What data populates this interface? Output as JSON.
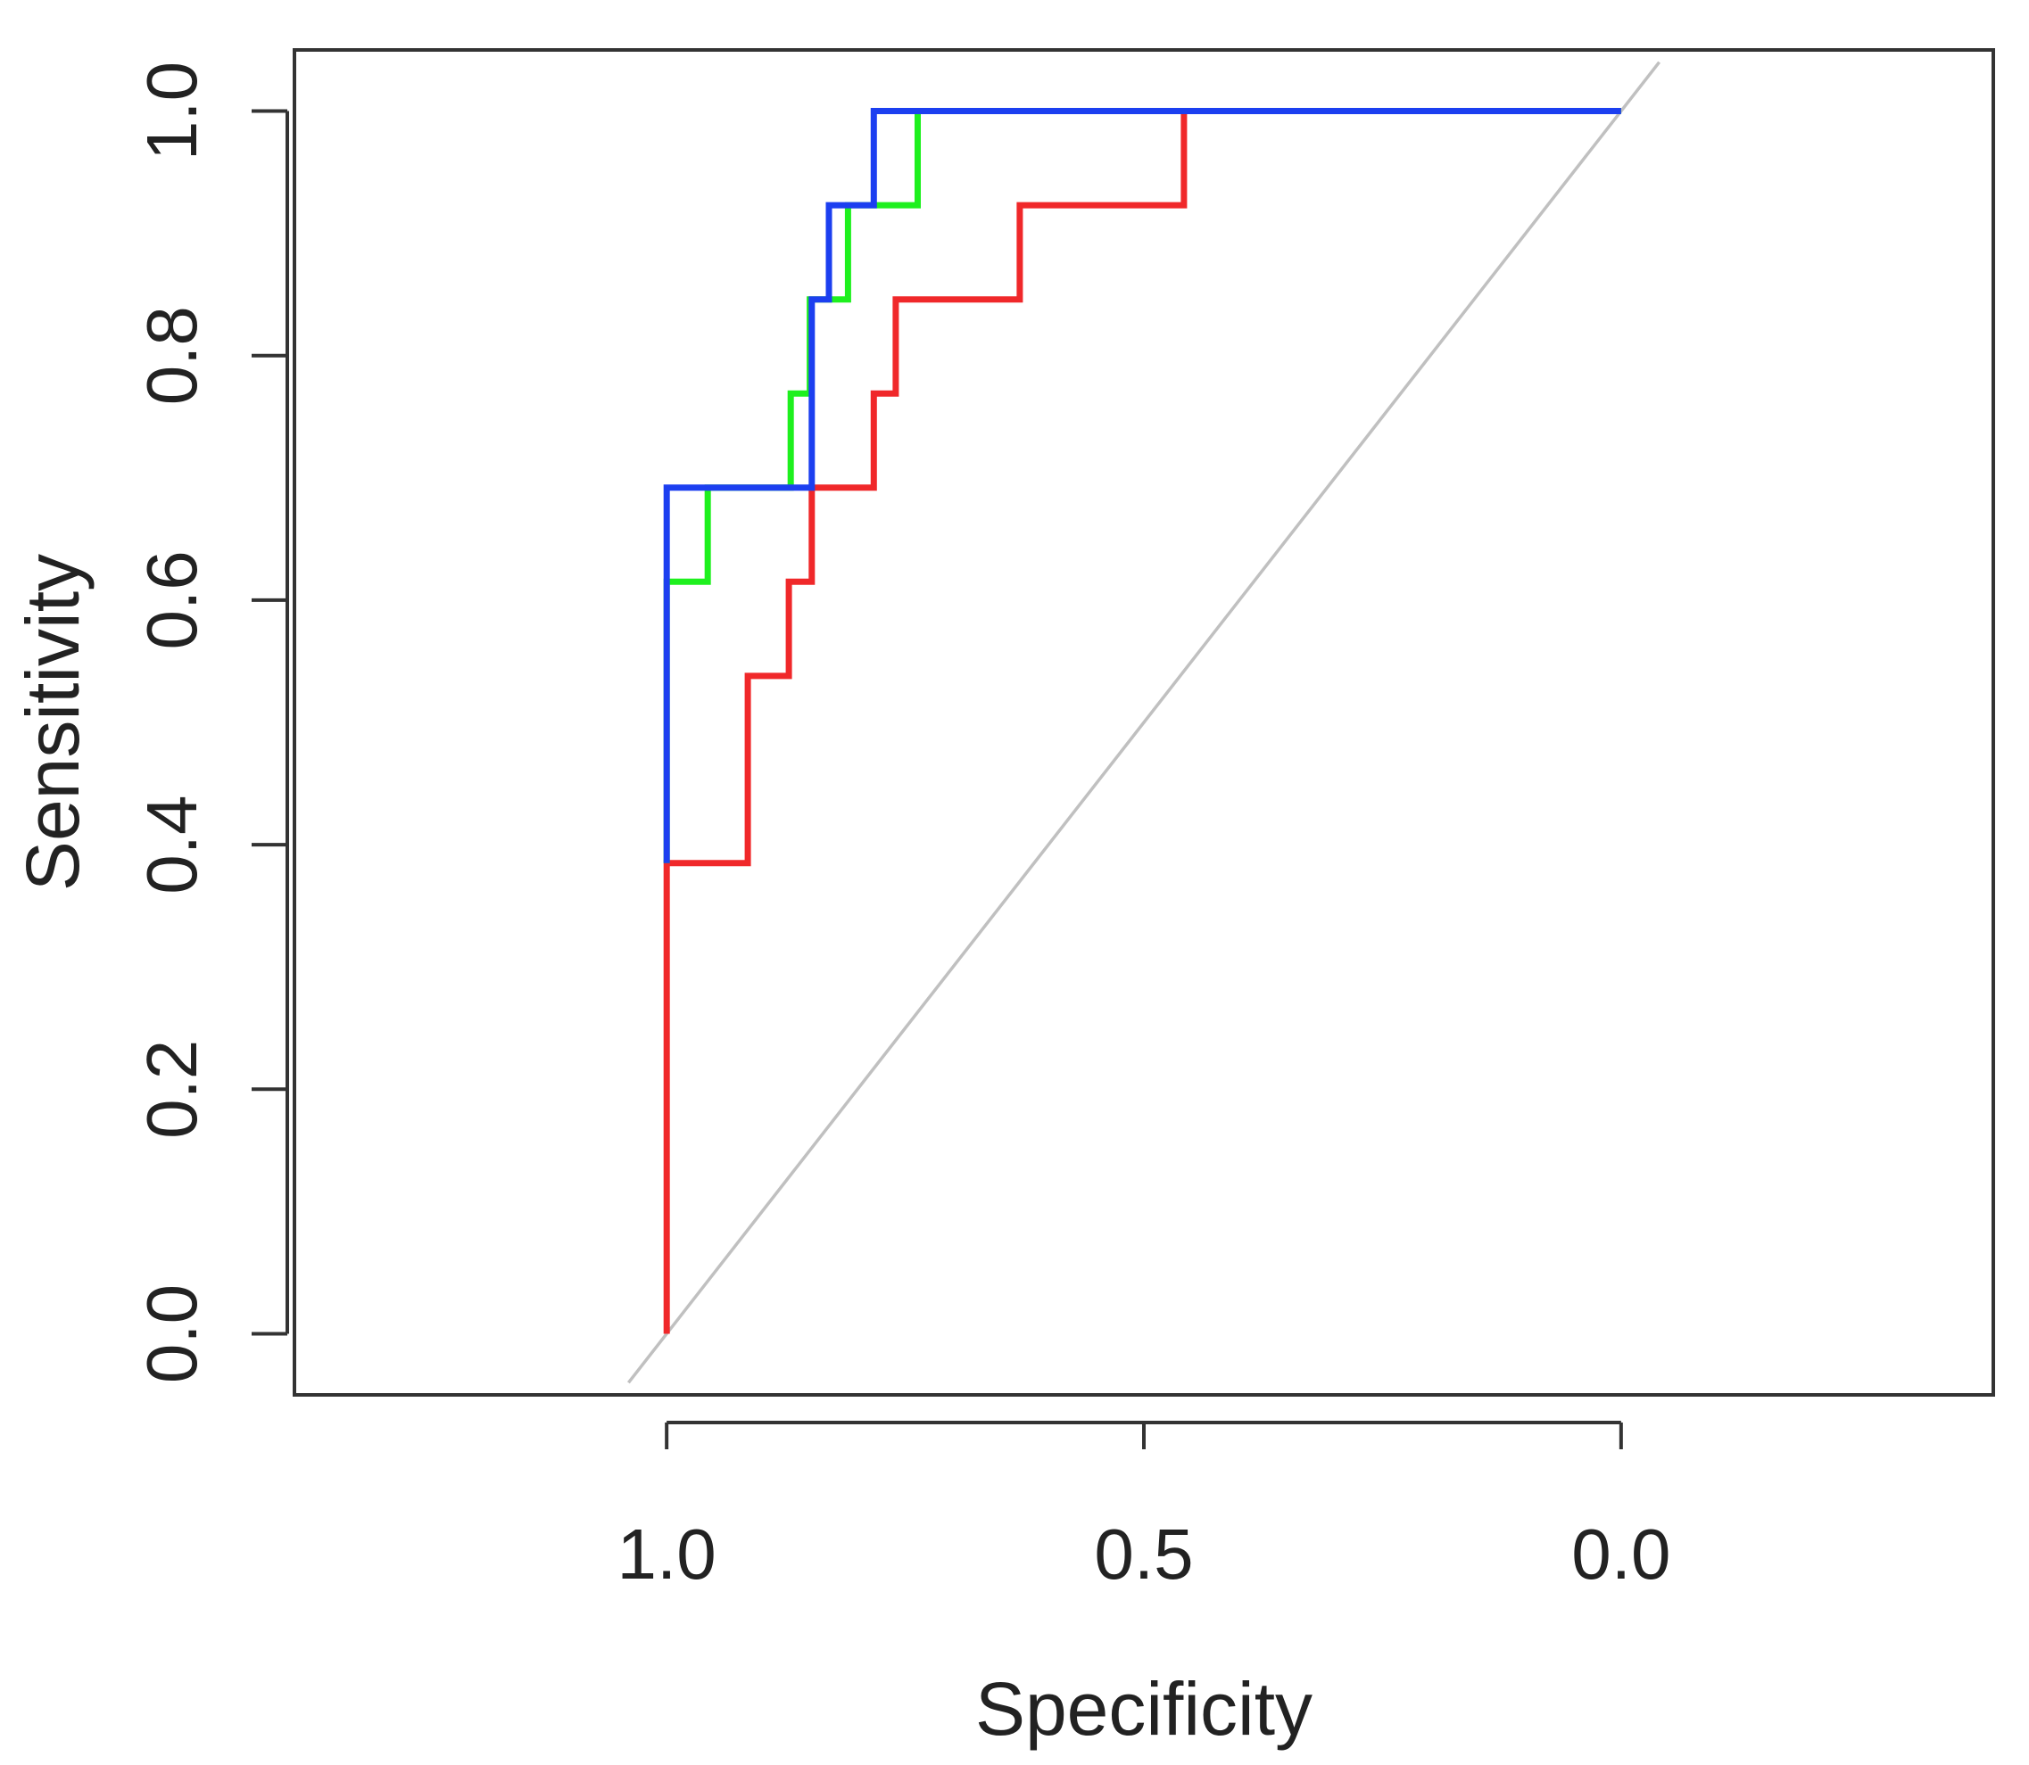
{
  "chart_data": {
    "type": "line",
    "title": "",
    "xlabel": "Specificity",
    "ylabel": "Sensitivity",
    "x_reversed": true,
    "xlim": [
      1.39,
      -0.39
    ],
    "ylim": [
      -0.05,
      1.05
    ],
    "xticks": [
      1.0,
      0.5,
      0.0
    ],
    "xtick_labels": [
      "1.0",
      "0.5",
      "0.0"
    ],
    "yticks": [
      0.0,
      0.2,
      0.4,
      0.6,
      0.8,
      1.0
    ],
    "ytick_labels": [
      "0.0",
      "0.2",
      "0.4",
      "0.6",
      "0.8",
      "1.0"
    ],
    "reference_line": {
      "name": "chance diagonal",
      "color": "#c0c0c0",
      "x": [
        1.04,
        -0.04
      ],
      "y": [
        -0.04,
        1.04
      ]
    },
    "series": [
      {
        "name": "red",
        "color": "#f0282a",
        "x": [
          1.0,
          1.0,
          0.915,
          0.915,
          0.872,
          0.872,
          0.848,
          0.848,
          0.783,
          0.783,
          0.76,
          0.76,
          0.63,
          0.63,
          0.458,
          0.458,
          0.0
        ],
        "y": [
          0.0,
          0.385,
          0.385,
          0.538,
          0.538,
          0.615,
          0.615,
          0.692,
          0.692,
          0.769,
          0.769,
          0.846,
          0.846,
          0.923,
          0.923,
          1.0,
          1.0
        ]
      },
      {
        "name": "green",
        "color": "#1ef01e",
        "x": [
          1.0,
          1.0,
          0.957,
          0.957,
          0.87,
          0.87,
          0.85,
          0.85,
          0.81,
          0.81,
          0.737,
          0.737,
          0.458,
          0.0
        ],
        "y": [
          0.385,
          0.615,
          0.615,
          0.692,
          0.692,
          0.769,
          0.769,
          0.846,
          0.846,
          0.923,
          0.923,
          1.0,
          1.0,
          1.0
        ]
      },
      {
        "name": "blue",
        "color": "#1c3ff0",
        "x": [
          1.0,
          1.0,
          0.848,
          0.848,
          0.83,
          0.83,
          0.783,
          0.783,
          0.458,
          0.0
        ],
        "y": [
          0.385,
          0.692,
          0.692,
          0.846,
          0.846,
          0.923,
          0.923,
          1.0,
          1.0,
          1.0
        ]
      }
    ]
  }
}
